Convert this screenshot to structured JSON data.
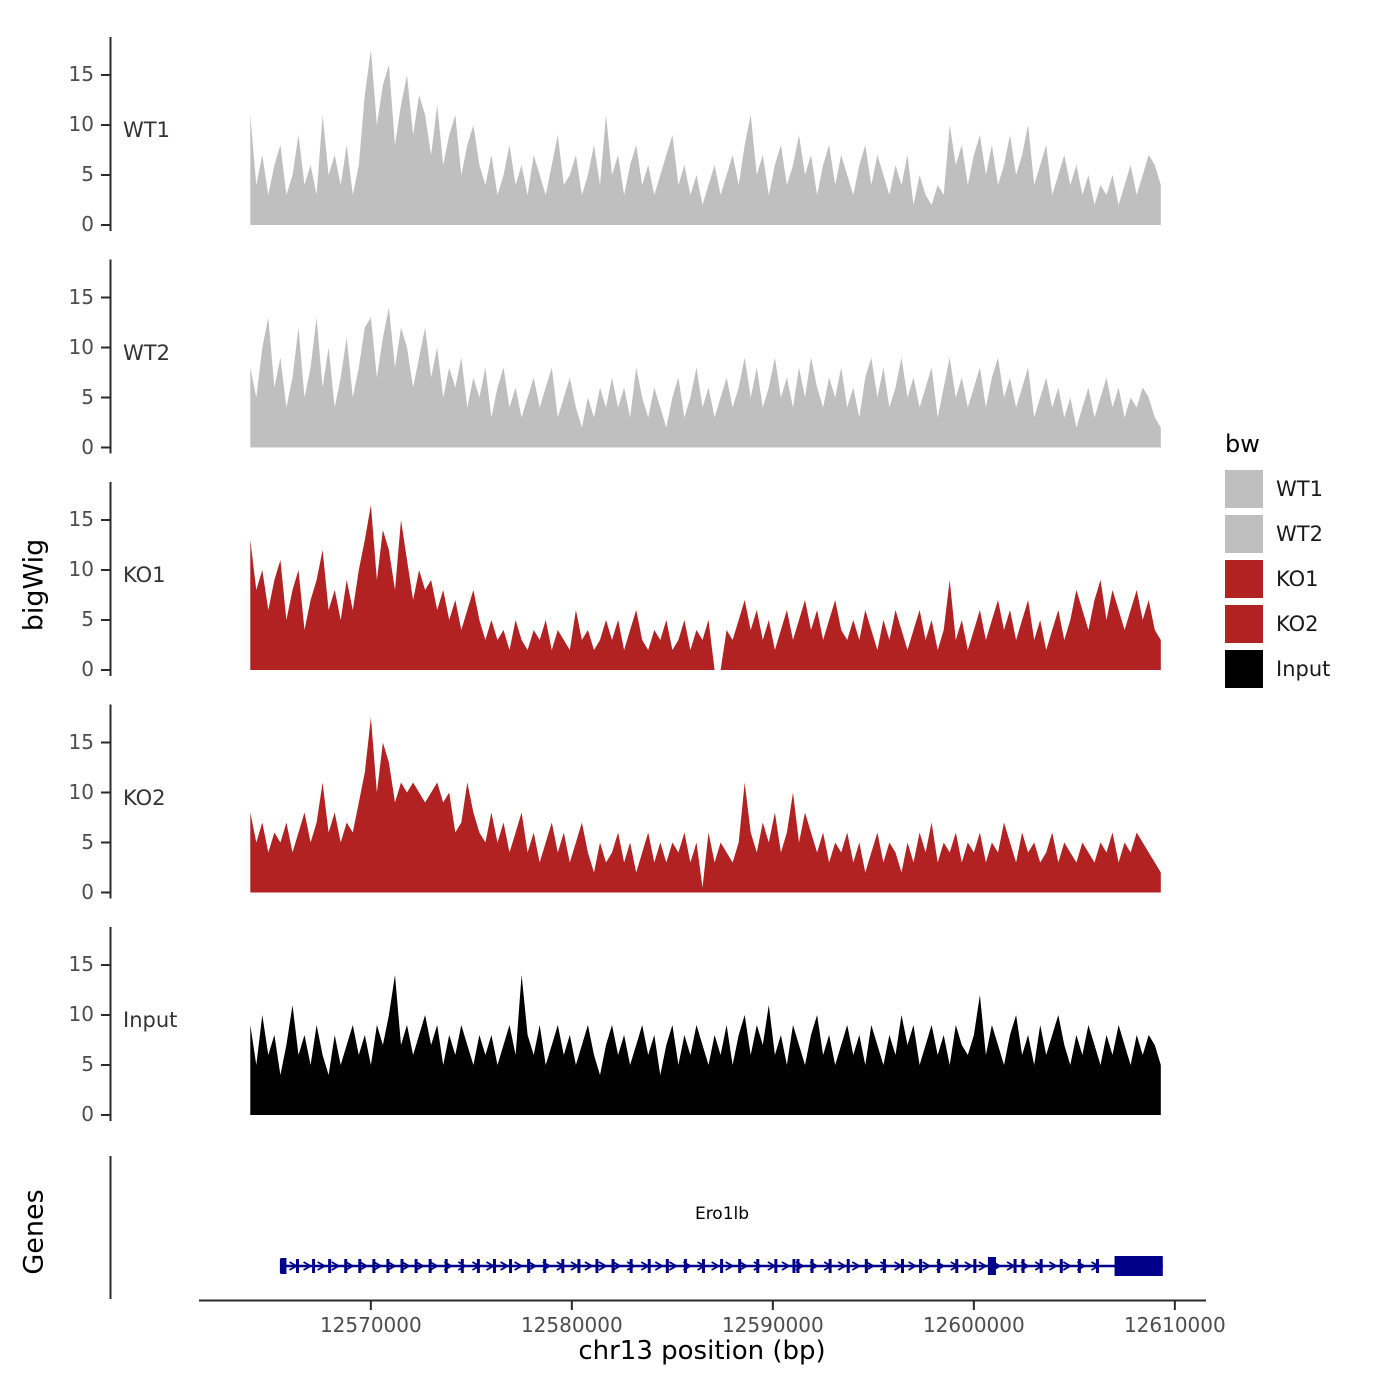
{
  "chart_data": {
    "type": "area",
    "title": "",
    "xlabel": "chr13 position (bp)",
    "ylabel": "bigWig",
    "genes_label": "Genes",
    "xlim": [
      12561500,
      12611500
    ],
    "ylim": [
      0,
      18
    ],
    "yticks": [
      0,
      5,
      10,
      15
    ],
    "xticks": [
      12570000,
      12580000,
      12590000,
      12600000,
      12610000
    ],
    "x_start": 12564000,
    "x_step": 300,
    "grid": false,
    "legend_position": "right",
    "tracks": [
      {
        "name": "WT1",
        "color": "#bfbfbf",
        "values": [
          11,
          4,
          7,
          3,
          6,
          8,
          3,
          5,
          9,
          4,
          6,
          3,
          11,
          5,
          7,
          4,
          8,
          3,
          6,
          13,
          17.5,
          10,
          14,
          16,
          8,
          12,
          15,
          9,
          13,
          11,
          7,
          12,
          6,
          9,
          11,
          5,
          8,
          10,
          6,
          4,
          7,
          3,
          5,
          8,
          4,
          6,
          3,
          7,
          5,
          3,
          6,
          9,
          4,
          5,
          7,
          3,
          5,
          8,
          4,
          11,
          5,
          7,
          3,
          6,
          8,
          4,
          6,
          3,
          5,
          7,
          9,
          4,
          6,
          3,
          5,
          2,
          4,
          6,
          3,
          5,
          7,
          4,
          8,
          11,
          5,
          7,
          3,
          6,
          8,
          4,
          6,
          9,
          5,
          7,
          3,
          6,
          8,
          4,
          7,
          5,
          3,
          6,
          8,
          4,
          7,
          5,
          3,
          6,
          4,
          7,
          2,
          5,
          3,
          2,
          4,
          3,
          10,
          6,
          8,
          4,
          7,
          9,
          5,
          8,
          4,
          6,
          9,
          5,
          7,
          10,
          4,
          6,
          8,
          3,
          5,
          7,
          4,
          6,
          3,
          5,
          2,
          4,
          3,
          5,
          2,
          4,
          6,
          3,
          5,
          7,
          6,
          4
        ]
      },
      {
        "name": "WT2",
        "color": "#bfbfbf",
        "values": [
          8,
          5,
          10,
          13,
          6,
          9,
          4,
          7,
          12,
          5,
          8,
          13,
          6,
          10,
          4,
          7,
          11,
          5,
          8,
          12,
          13,
          7,
          11,
          14,
          8,
          12,
          10,
          6,
          9,
          12,
          7,
          10,
          5,
          8,
          6,
          9,
          4,
          7,
          5,
          8,
          3,
          6,
          8,
          4,
          6,
          3,
          5,
          7,
          4,
          6,
          8,
          3,
          5,
          7,
          4,
          2,
          5,
          3,
          6,
          4,
          7,
          4,
          6,
          3,
          8,
          5,
          3,
          6,
          4,
          2,
          5,
          7,
          3,
          5,
          8,
          4,
          6,
          3,
          5,
          7,
          4,
          6,
          9,
          5,
          8,
          4,
          6,
          9,
          5,
          7,
          4,
          8,
          5,
          9,
          6,
          4,
          7,
          5,
          8,
          4,
          6,
          3,
          7,
          9,
          5,
          8,
          4,
          6,
          9,
          5,
          7,
          4,
          6,
          8,
          3,
          6,
          9,
          5,
          7,
          4,
          6,
          8,
          4,
          7,
          9,
          5,
          7,
          4,
          6,
          8,
          3,
          5,
          7,
          4,
          6,
          3,
          5,
          2,
          4,
          6,
          3,
          5,
          7,
          4,
          6,
          3,
          5,
          4,
          6,
          5,
          3,
          2
        ]
      },
      {
        "name": "KO1",
        "color": "#b22222",
        "values": [
          13,
          8,
          10,
          6,
          9,
          11,
          5,
          8,
          10,
          4,
          7,
          9,
          12,
          6,
          8,
          5,
          9,
          6,
          10,
          13,
          16.5,
          9,
          14,
          12,
          8,
          15,
          11,
          7,
          10,
          8,
          9,
          6,
          8,
          5,
          7,
          4,
          6,
          8,
          5,
          3,
          5,
          3,
          4,
          2,
          5,
          3,
          2,
          4,
          3,
          5,
          2,
          4,
          3,
          2,
          6,
          3,
          4,
          2,
          3,
          5,
          3,
          5,
          2,
          4,
          6,
          3,
          2,
          4,
          3,
          5,
          2,
          3,
          5,
          2,
          4,
          3,
          5,
          0,
          0,
          4,
          3,
          5,
          7,
          4,
          6,
          3,
          5,
          2,
          4,
          6,
          3,
          5,
          7,
          4,
          6,
          3,
          5,
          7,
          4,
          3,
          5,
          3,
          6,
          4,
          2,
          5,
          3,
          6,
          4,
          2,
          4,
          6,
          3,
          5,
          2,
          4,
          9,
          3,
          5,
          2,
          4,
          6,
          3,
          5,
          7,
          4,
          6,
          3,
          5,
          7,
          3,
          5,
          2,
          4,
          6,
          3,
          5,
          8,
          6,
          4,
          7,
          9,
          5,
          8,
          6,
          4,
          6,
          8,
          5,
          7,
          4,
          3
        ]
      },
      {
        "name": "KO2",
        "color": "#b22222",
        "values": [
          8,
          5,
          7,
          4,
          6,
          5,
          7,
          4,
          6,
          8,
          5,
          7,
          11,
          6,
          8,
          5,
          7,
          6,
          9,
          12,
          17.5,
          10,
          15,
          13,
          9,
          11,
          10,
          11,
          10,
          9,
          10,
          11,
          9,
          10,
          6,
          7,
          11,
          8,
          6,
          5,
          8,
          5,
          7,
          4,
          6,
          8,
          4,
          6,
          3,
          5,
          7,
          4,
          6,
          3,
          5,
          7,
          4,
          2,
          5,
          3,
          4,
          6,
          3,
          5,
          2,
          4,
          6,
          3,
          5,
          3,
          5,
          4,
          6,
          3,
          5,
          0.5,
          6,
          3,
          5,
          4,
          3,
          5,
          11,
          6,
          4,
          7,
          5,
          8,
          4,
          6,
          10,
          5,
          8,
          6,
          4,
          6,
          3,
          5,
          4,
          6,
          3,
          5,
          2,
          4,
          6,
          3,
          5,
          4,
          2,
          5,
          3,
          6,
          4,
          7,
          3,
          5,
          4,
          6,
          3,
          5,
          4,
          6,
          3,
          5,
          4,
          7,
          5,
          3,
          6,
          4,
          5,
          3,
          4,
          6,
          3,
          5,
          4,
          3,
          5,
          4,
          3,
          5,
          4,
          6,
          3,
          5,
          4,
          6,
          5,
          4,
          3,
          2
        ]
      },
      {
        "name": "Input",
        "color": "#000000",
        "values": [
          9,
          5,
          10,
          6,
          8,
          4,
          7,
          11,
          6,
          8,
          5,
          9,
          6,
          4,
          8,
          5,
          7,
          9,
          6,
          8,
          5,
          9,
          7,
          10,
          14,
          7,
          9,
          6,
          8,
          10,
          7,
          9,
          5,
          8,
          6,
          9,
          7,
          5,
          8,
          6,
          8,
          5,
          7,
          9,
          6,
          14,
          8,
          6,
          9,
          5,
          7,
          9,
          6,
          8,
          5,
          7,
          9,
          6,
          4,
          7,
          9,
          6,
          8,
          5,
          7,
          9,
          6,
          8,
          4,
          7,
          9,
          5,
          8,
          6,
          9,
          7,
          5,
          8,
          6,
          9,
          5,
          8,
          10,
          6,
          9,
          7,
          11,
          6,
          8,
          5,
          9,
          7,
          5,
          8,
          10,
          6,
          8,
          5,
          7,
          9,
          6,
          8,
          5,
          9,
          7,
          5,
          8,
          6,
          10,
          7,
          9,
          5,
          7,
          9,
          6,
          8,
          5,
          9,
          7,
          6,
          8,
          12,
          6,
          9,
          7,
          5,
          8,
          10,
          6,
          8,
          5,
          9,
          6,
          8,
          10,
          7,
          5,
          8,
          6,
          9,
          7,
          5,
          8,
          6,
          9,
          7,
          5,
          8,
          6,
          8,
          7,
          5
        ]
      }
    ],
    "gene": {
      "label": "Ero1lb",
      "strand": "+",
      "color": "#00008b",
      "line": [
        12565500,
        12609400
      ],
      "start_box": [
        12565500,
        12565800
      ],
      "mid_box": [
        12600700,
        12601100
      ],
      "thick_box": [
        12607000,
        12609400
      ],
      "exon_ticks": [
        12565550,
        12566350,
        12567150,
        12567950,
        12568750,
        12569450,
        12570150,
        12570850,
        12571550,
        12572250,
        12572950,
        12573750,
        12574550,
        12575350,
        12576150,
        12576950,
        12577850,
        12578650,
        12579550,
        12580350,
        12581250,
        12582050,
        12582950,
        12583850,
        12584750,
        12585650,
        12586550,
        12587450,
        12588350,
        12589250,
        12590150,
        12591050,
        12591250,
        12591950,
        12592850,
        12593750,
        12594650,
        12595550,
        12596450,
        12597350,
        12598250,
        12599150,
        12600050,
        12602050,
        12602450,
        12603350,
        12604350,
        12605250,
        12606150
      ]
    },
    "legend": {
      "title": "bw",
      "entries": [
        {
          "label": "WT1",
          "color": "#bfbfbf"
        },
        {
          "label": "WT2",
          "color": "#bfbfbf"
        },
        {
          "label": "KO1",
          "color": "#b22222"
        },
        {
          "label": "KO2",
          "color": "#b22222"
        },
        {
          "label": "Input",
          "color": "#000000"
        }
      ]
    }
  }
}
